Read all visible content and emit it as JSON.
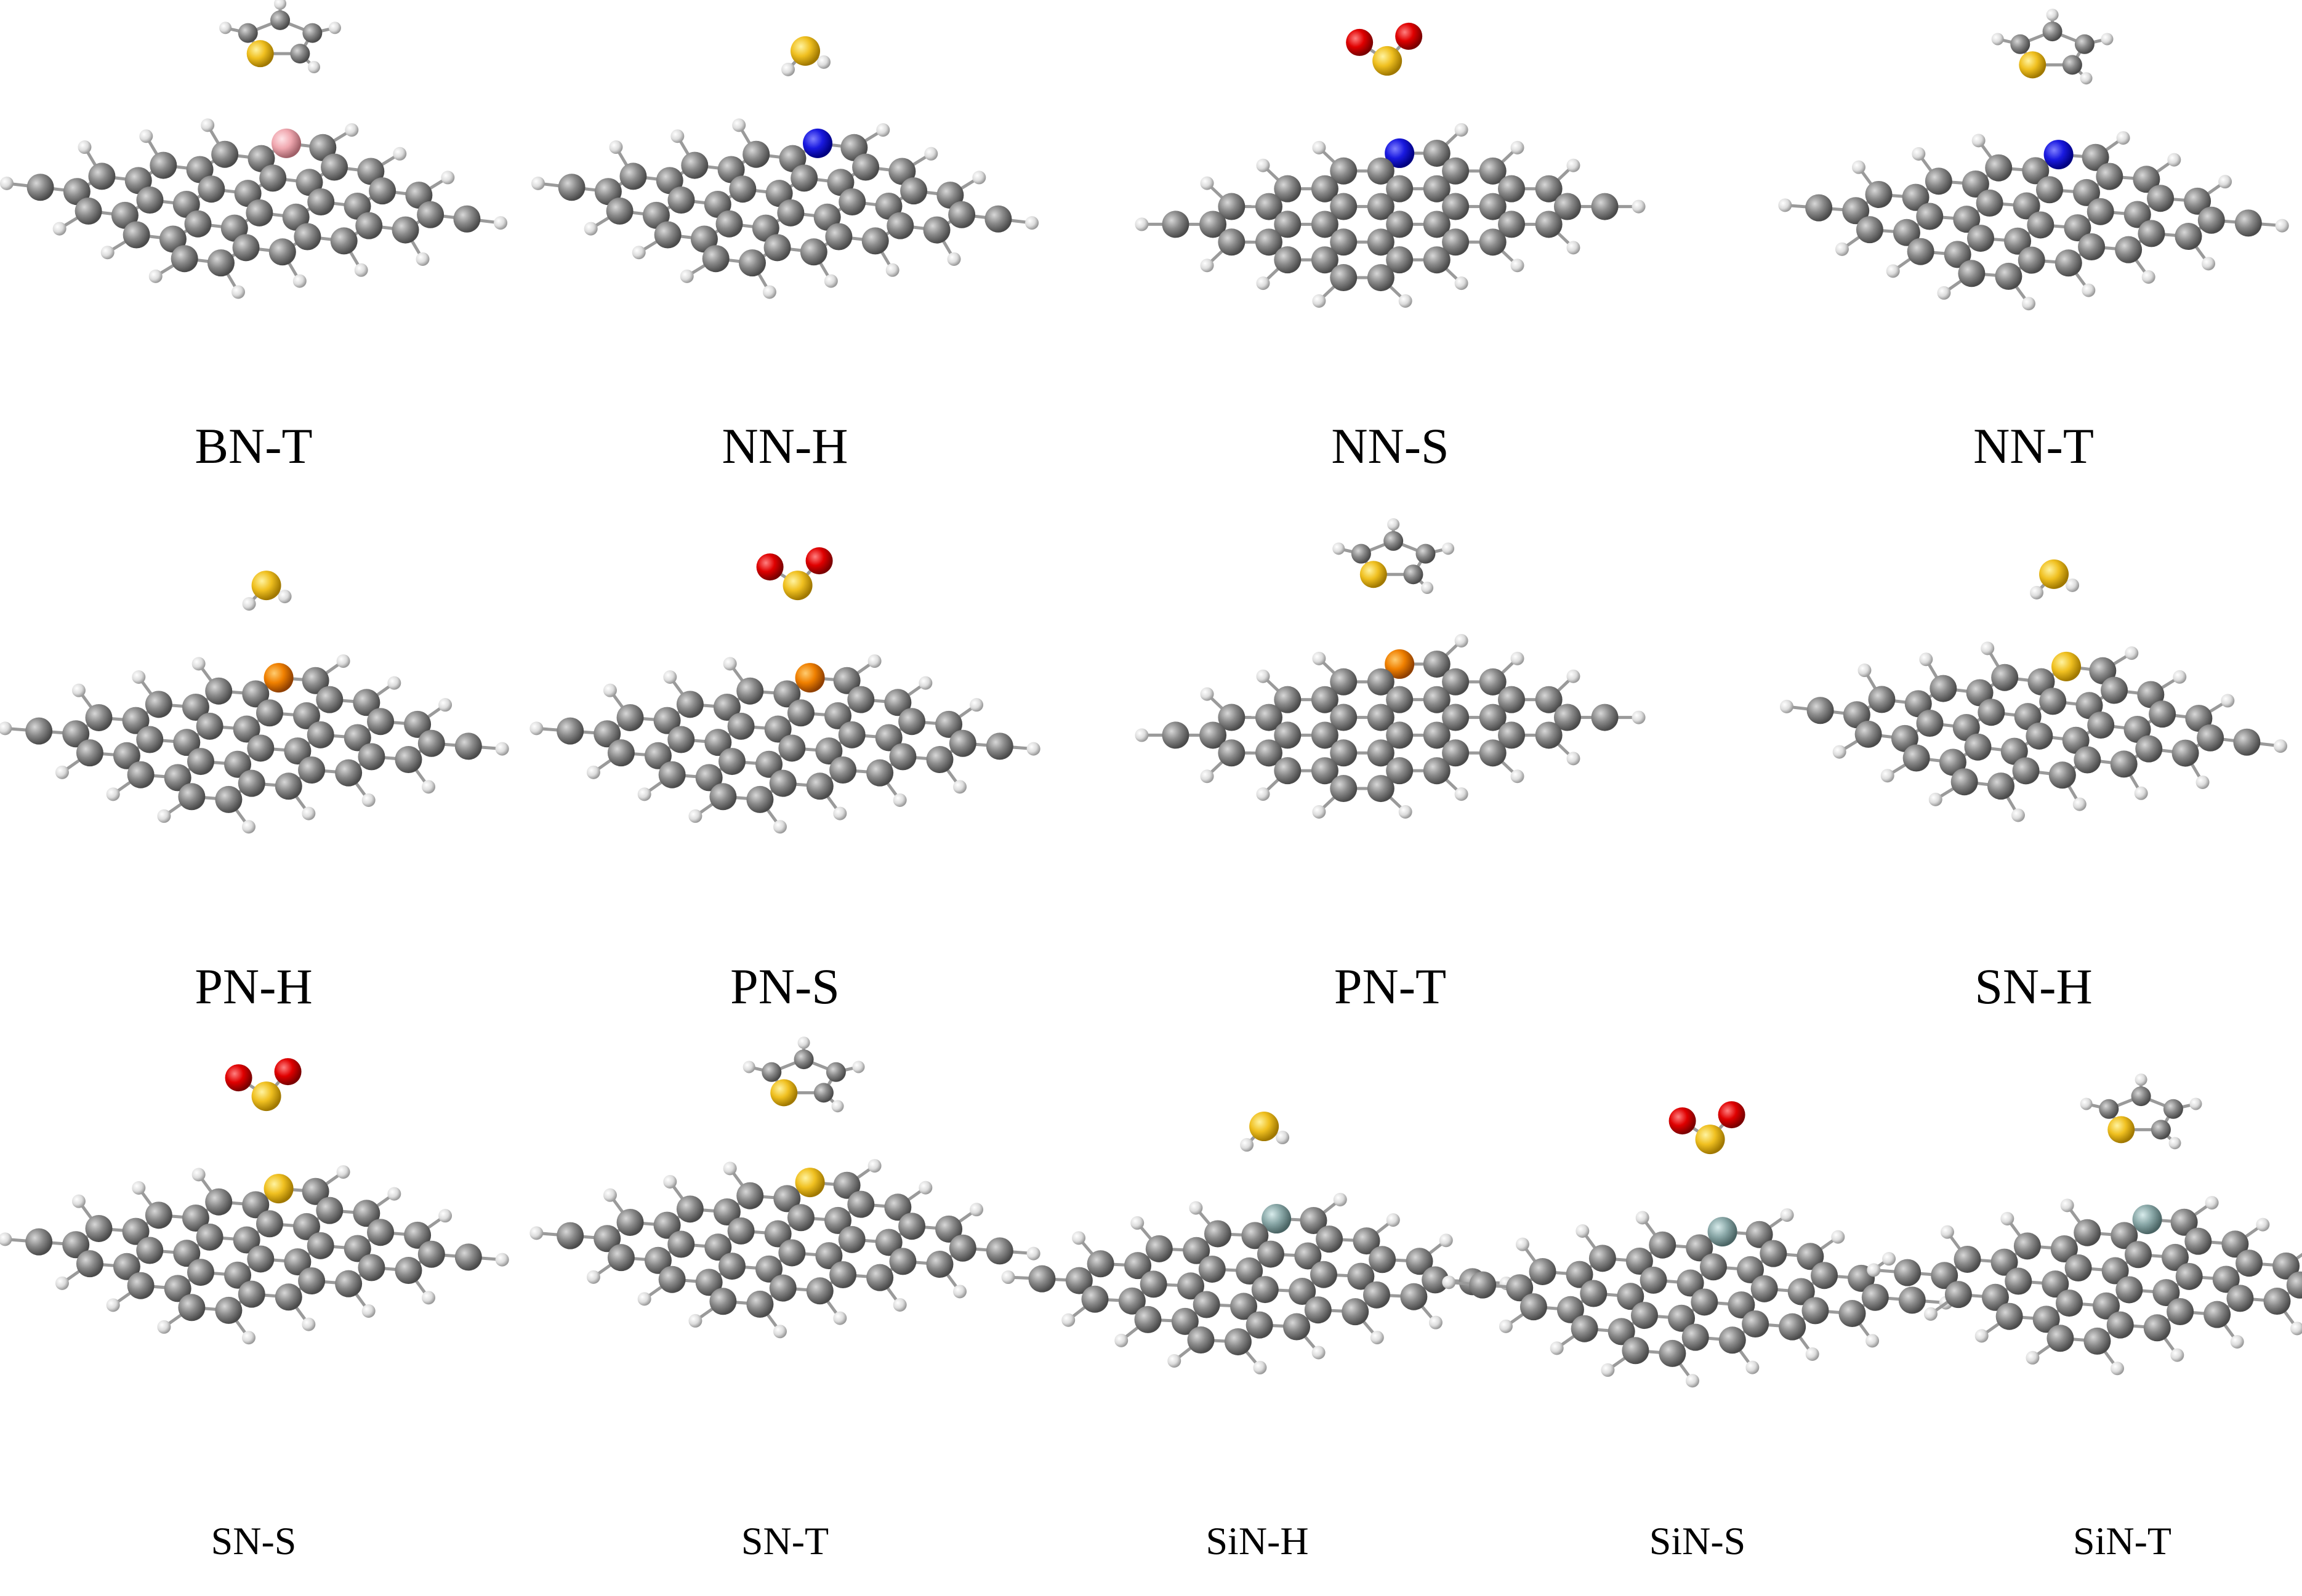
{
  "panels": [
    {
      "label": "BN-T"
    },
    {
      "label": "NN-H"
    },
    {
      "label": "NN-S"
    },
    {
      "label": "NN-T"
    },
    {
      "label": "PN-H"
    },
    {
      "label": "PN-S"
    },
    {
      "label": "PN-T"
    },
    {
      "label": "SN-H"
    },
    {
      "label": "SN-S"
    },
    {
      "label": "SN-T"
    },
    {
      "label": "SiN-H"
    },
    {
      "label": "SiN-S"
    },
    {
      "label": "SiN-T"
    }
  ]
}
